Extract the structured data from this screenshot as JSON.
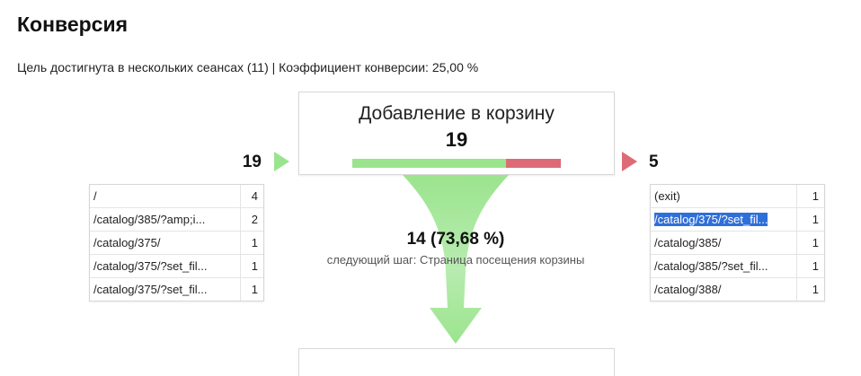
{
  "page": {
    "title": "Конверсия",
    "summary": "Цель достигнута в нескольких сеансах (11) | Коэффициент конверсии: 25,00 %"
  },
  "step": {
    "name": "Добавление в корзину",
    "count": "19",
    "continue_fraction": 0.7368,
    "colors": {
      "continue": "#9be48e",
      "exit": "#dd6b76"
    }
  },
  "entrances": {
    "count": "19",
    "rows": [
      {
        "path": "/",
        "count": "4"
      },
      {
        "path": "/catalog/385/?amp;i...",
        "count": "2"
      },
      {
        "path": "/catalog/375/",
        "count": "1"
      },
      {
        "path": "/catalog/375/?set_fil...",
        "count": "1"
      },
      {
        "path": "/catalog/375/?set_fil...",
        "count": "1"
      }
    ]
  },
  "exits": {
    "count": "5",
    "rows": [
      {
        "path": "(exit)",
        "count": "1"
      },
      {
        "path": "/catalog/375/?set_fil...",
        "count": "1",
        "highlighted": true
      },
      {
        "path": "/catalog/385/",
        "count": "1"
      },
      {
        "path": "/catalog/385/?set_fil...",
        "count": "1"
      },
      {
        "path": "/catalog/388/",
        "count": "1"
      }
    ]
  },
  "conversion": {
    "label": "14 (73,68 %)",
    "next_step": "следующий шаг: Страница посещения корзины"
  }
}
